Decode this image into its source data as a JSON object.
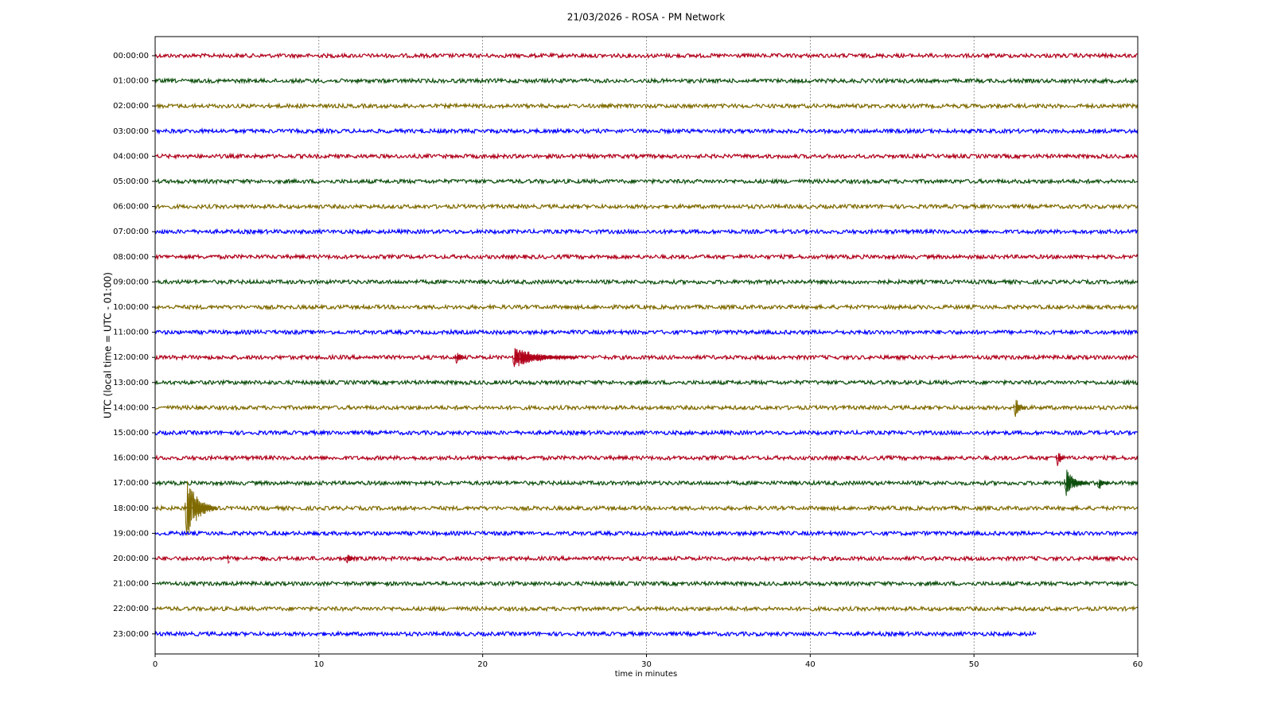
{
  "chart_data": {
    "type": "helicorder",
    "title": "21/03/2026 - ROSA - PM Network",
    "x_label": "time in minutes",
    "y_label": "UTC (local time = UTC - 01:00)",
    "xlim": [
      0,
      60
    ],
    "xticks": [
      0,
      10,
      20,
      30,
      40,
      50,
      60
    ],
    "grid": true,
    "series": [
      {
        "name": "00:00:00",
        "color": "#b0001a",
        "x": [
          0,
          60
        ],
        "events": []
      },
      {
        "name": "01:00:00",
        "color": "#0d4f0d",
        "x": [
          0,
          60
        ],
        "events": []
      },
      {
        "name": "02:00:00",
        "color": "#7f6a00",
        "x": [
          0,
          60
        ],
        "events": []
      },
      {
        "name": "03:00:00",
        "color": "#0000ff",
        "x": [
          0,
          60
        ],
        "events": []
      },
      {
        "name": "04:00:00",
        "color": "#b0001a",
        "x": [
          0,
          60
        ],
        "events": []
      },
      {
        "name": "05:00:00",
        "color": "#0d4f0d",
        "x": [
          0,
          60
        ],
        "events": []
      },
      {
        "name": "06:00:00",
        "color": "#7f6a00",
        "x": [
          0,
          60
        ],
        "events": []
      },
      {
        "name": "07:00:00",
        "color": "#0000ff",
        "x": [
          0,
          60
        ],
        "events": []
      },
      {
        "name": "08:00:00",
        "color": "#b0001a",
        "x": [
          0,
          60
        ],
        "events": []
      },
      {
        "name": "09:00:00",
        "color": "#0d4f0d",
        "x": [
          0,
          60
        ],
        "events": []
      },
      {
        "name": "10:00:00",
        "color": "#7f6a00",
        "x": [
          0,
          60
        ],
        "events": []
      },
      {
        "name": "11:00:00",
        "color": "#0000ff",
        "x": [
          0,
          60
        ],
        "events": []
      },
      {
        "name": "12:00:00",
        "color": "#b0001a",
        "x": [
          0,
          60
        ],
        "events": [
          {
            "x": 18.3,
            "amp": 0.7,
            "dur": 0.6
          },
          {
            "x": 21.8,
            "amp": 0.5,
            "dur": 4
          }
        ]
      },
      {
        "name": "13:00:00",
        "color": "#0d4f0d",
        "x": [
          0,
          60
        ],
        "events": []
      },
      {
        "name": "14:00:00",
        "color": "#7f6a00",
        "x": [
          0,
          60
        ],
        "events": [
          {
            "x": 2.5,
            "amp": 0.25,
            "dur": 0.4
          },
          {
            "x": 52.4,
            "amp": 0.7,
            "dur": 0.8
          }
        ]
      },
      {
        "name": "15:00:00",
        "color": "#0000ff",
        "x": [
          0,
          60
        ],
        "events": []
      },
      {
        "name": "16:00:00",
        "color": "#b0001a",
        "x": [
          0,
          60
        ],
        "events": [
          {
            "x": 55,
            "amp": 0.9,
            "dur": 0.5
          }
        ]
      },
      {
        "name": "17:00:00",
        "color": "#0d4f0d",
        "x": [
          0,
          60
        ],
        "events": [
          {
            "x": 55.5,
            "amp": 0.8,
            "dur": 1.5
          },
          {
            "x": 57.5,
            "amp": 0.5,
            "dur": 0.8
          }
        ]
      },
      {
        "name": "18:00:00",
        "color": "#7f6a00",
        "x": [
          0,
          60
        ],
        "events": [
          {
            "x": 1.8,
            "amp": 1.5,
            "dur": 2
          }
        ]
      },
      {
        "name": "19:00:00",
        "color": "#0000ff",
        "x": [
          0,
          60
        ],
        "events": []
      },
      {
        "name": "20:00:00",
        "color": "#b0001a",
        "x": [
          0,
          60
        ],
        "events": [
          {
            "x": 4.4,
            "amp": 1.9,
            "dur": 0.15
          },
          {
            "x": 6.4,
            "amp": 0.4,
            "dur": 0.4
          },
          {
            "x": 11.6,
            "amp": 0.5,
            "dur": 0.6
          }
        ]
      },
      {
        "name": "21:00:00",
        "color": "#0d4f0d",
        "x": [
          0,
          60
        ],
        "events": []
      },
      {
        "name": "22:00:00",
        "color": "#7f6a00",
        "x": [
          0,
          60
        ],
        "events": []
      },
      {
        "name": "23:00:00",
        "color": "#0000ff",
        "x": [
          0,
          53.8
        ],
        "events": []
      }
    ]
  }
}
